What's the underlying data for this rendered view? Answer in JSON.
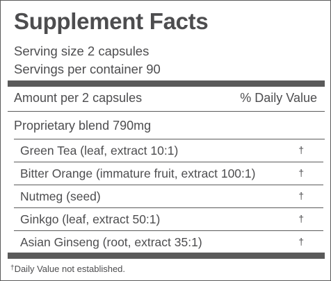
{
  "panel": {
    "title": "Supplement Facts",
    "serving_size": "Serving size 2 capsules",
    "servings_per_container": "Servings per container 90",
    "amount_header": "Amount per 2 capsules",
    "dv_header": "% Daily Value",
    "blend": "Proprietary blend 790mg",
    "ingredients": [
      {
        "name": "Green Tea (leaf, extract 10:1)",
        "dv": "†"
      },
      {
        "name": "Bitter Orange (immature fruit, extract 100:1)",
        "dv": "†"
      },
      {
        "name": "Nutmeg (seed)",
        "dv": "†"
      },
      {
        "name": "Ginkgo (leaf, extract 50:1)",
        "dv": "†"
      },
      {
        "name": "Asian Ginseng (root, extract 35:1)",
        "dv": "†"
      }
    ],
    "footnote_mark": "†",
    "footnote_text": "Daily Value not established."
  },
  "colors": {
    "text": "#4d4d4f",
    "rules": "#5a5a5a",
    "background": "#ffffff"
  }
}
